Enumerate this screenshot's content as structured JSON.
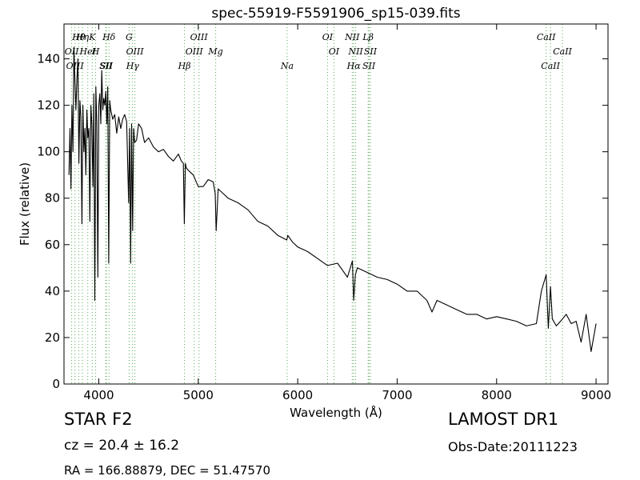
{
  "chart_data": {
    "type": "line",
    "title": "spec-55919-F5591906_sp15-039.fits",
    "xlabel": "Wavelength (Å)",
    "ylabel": "Flux (relative)",
    "xlim": [
      3650,
      9120
    ],
    "ylim": [
      0,
      155
    ],
    "xticks": [
      4000,
      5000,
      6000,
      7000,
      8000,
      9000
    ],
    "yticks": [
      0,
      20,
      40,
      60,
      80,
      100,
      120,
      140
    ],
    "grid": false,
    "series": [
      {
        "color": "#000000",
        "x": [
          3700,
          3710,
          3720,
          3730,
          3740,
          3750,
          3760,
          3770,
          3780,
          3790,
          3800,
          3810,
          3820,
          3830,
          3840,
          3850,
          3860,
          3870,
          3880,
          3890,
          3900,
          3910,
          3920,
          3930,
          3940,
          3950,
          3960,
          3970,
          3980,
          3990,
          4000,
          4010,
          4020,
          4030,
          4040,
          4050,
          4060,
          4070,
          4080,
          4090,
          4100,
          4110,
          4120,
          4140,
          4160,
          4180,
          4200,
          4220,
          4240,
          4260,
          4280,
          4300,
          4310,
          4320,
          4330,
          4340,
          4350,
          4360,
          4380,
          4400,
          4430,
          4460,
          4500,
          4550,
          4600,
          4650,
          4700,
          4750,
          4800,
          4830,
          4850,
          4860,
          4870,
          4880,
          4900,
          4950,
          5000,
          5050,
          5100,
          5150,
          5170,
          5180,
          5200,
          5250,
          5300,
          5400,
          5500,
          5600,
          5700,
          5800,
          5890,
          5900,
          5950,
          6000,
          6100,
          6200,
          6300,
          6400,
          6450,
          6500,
          6550,
          6563,
          6580,
          6600,
          6700,
          6800,
          6900,
          7000,
          7100,
          7200,
          7300,
          7350,
          7400,
          7500,
          7600,
          7700,
          7800,
          7900,
          8000,
          8100,
          8200,
          8300,
          8400,
          8450,
          8498,
          8520,
          8542,
          8560,
          8600,
          8662,
          8700,
          8750,
          8800,
          8850,
          8900,
          8950,
          9000
        ],
        "y": [
          90,
          110,
          84,
          120,
          100,
          145,
          130,
          118,
          132,
          140,
          95,
          122,
          115,
          69,
          120,
          100,
          110,
          90,
          118,
          106,
          110,
          70,
          120,
          112,
          85,
          125,
          36,
          128,
          112,
          46,
          120,
          125,
          112,
          135,
          118,
          123,
          120,
          126,
          112,
          128,
          52,
          122,
          118,
          114,
          116,
          108,
          115,
          110,
          114,
          116,
          113,
          78,
          110,
          52,
          112,
          66,
          110,
          104,
          105,
          112,
          110,
          104,
          106,
          102,
          100,
          101,
          98,
          96,
          99,
          96,
          95,
          69,
          95,
          93,
          92,
          90,
          85,
          85,
          88,
          87,
          82,
          66,
          84,
          82,
          80,
          78,
          75,
          70,
          68,
          64,
          62,
          64,
          61,
          59,
          57,
          54,
          51,
          52,
          49,
          46,
          53,
          36,
          47,
          50,
          48,
          46,
          45,
          43,
          40,
          40,
          36,
          31,
          36,
          34,
          32,
          30,
          30,
          28,
          29,
          28,
          27,
          25,
          26,
          40,
          47,
          24,
          42,
          28,
          25,
          28,
          30,
          26,
          27,
          18,
          30,
          14,
          26
        ]
      }
    ],
    "lines": [
      {
        "name": "Hθ",
        "wave": 3798
      },
      {
        "name": "OII",
        "wave": 3727
      },
      {
        "name": "OIII",
        "wave": 3760
      },
      {
        "name": "Hη",
        "wave": 3835
      },
      {
        "name": "HeI",
        "wave": 3889
      },
      {
        "name": "SII",
        "wave": 4070
      },
      {
        "name": "K",
        "wave": 3934
      },
      {
        "name": "H",
        "wave": 3968
      },
      {
        "name": "SII",
        "wave": 4076
      },
      {
        "name": "Hδ",
        "wave": 4102
      },
      {
        "name": "OIII",
        "wave": 4363
      },
      {
        "name": "Hγ",
        "wave": 4340
      },
      {
        "name": "G",
        "wave": 4305
      },
      {
        "name": "OIII",
        "wave": 4959
      },
      {
        "name": "Hβ",
        "wave": 4861
      },
      {
        "name": "OIII",
        "wave": 5007
      },
      {
        "name": "Mg",
        "wave": 5175
      },
      {
        "name": "Na",
        "wave": 5894
      },
      {
        "name": "OI",
        "wave": 6300
      },
      {
        "name": "OI",
        "wave": 6364
      },
      {
        "name": "Hα",
        "wave": 6563
      },
      {
        "name": "NII",
        "wave": 6548
      },
      {
        "name": "NII",
        "wave": 6583
      },
      {
        "name": "SII",
        "wave": 6716
      },
      {
        "name": "Lβ",
        "wave": 6708
      },
      {
        "name": "SII",
        "wave": 6731
      },
      {
        "name": "CaII",
        "wave": 8542
      },
      {
        "name": "CaII",
        "wave": 8498
      },
      {
        "name": "CaII",
        "wave": 8662
      }
    ],
    "line_color": "#55aa55"
  },
  "info": {
    "object_class": "STAR   F2",
    "cz": "cz = 20.4  ± 16.2",
    "radec": "RA = 166.88879, DEC = 51.47570",
    "survey": "LAMOST DR1",
    "obs_date": "Obs-Date:20111223"
  }
}
